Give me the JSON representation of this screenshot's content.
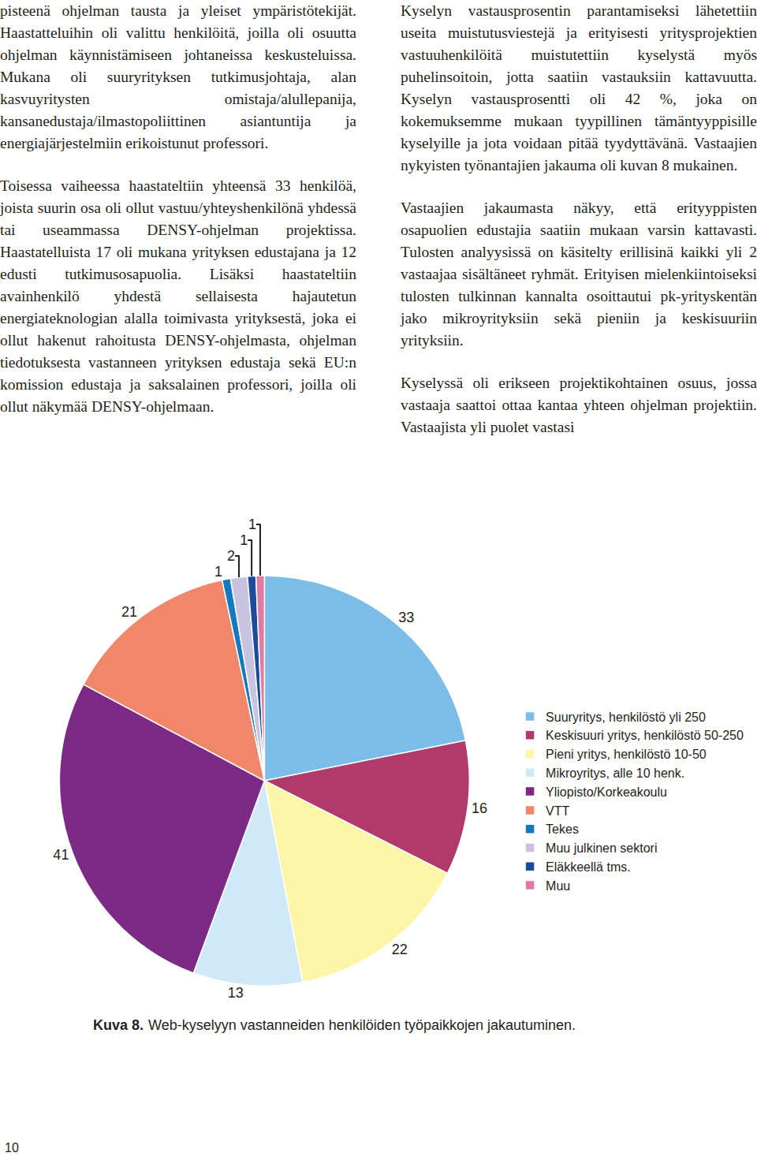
{
  "columns": [
    [
      "pisteenä ohjelman tausta ja yleiset ympäristötekijät. Haastatteluihin oli valittu henkilöitä, joilla oli osuutta ohjelman käynnistämiseen johtaneissa keskusteluissa. Mukana oli suuryrityksen tutkimusjohtaja, alan kasvuyritysten omistaja/alullepanija, kansanedustaja/ilmastopoliittinen asiantuntija ja energiajärjestelmiin erikoistunut professori.",
      "Toisessa vaiheessa haastateltiin yhteensä 33 henkilöä, joista suurin osa oli ollut vastuu/yhteyshenkilönä yhdessä tai useammassa DENSY-ohjelman projektissa. Haastatelluista 17 oli mukana yrityksen edustajana ja 12 edusti tutkimusosapuolia. Lisäksi haastateltiin avainhenkilö yhdestä sellaisesta hajautetun energiateknologian alalla toimivasta yrityksestä, joka ei ollut hakenut rahoitusta DENSY-ohjelmasta, ohjelman tiedotuksesta vastanneen yrityksen edustaja sekä EU:n komission edustaja ja saksalainen professori, joilla oli ollut näkymää DENSY-ohjelmaan."
    ],
    [
      "Kyselyn vastausprosentin parantamiseksi lähetettiin useita muistutusviestejä ja erityisesti yritysprojektien vastuuhenkilöitä muistutettiin kyselystä myös puhelinsoitoin, jotta saatiin vastauksiin kattavuutta. Kyselyn vastausprosentti oli 42 %, joka on kokemuksemme mukaan tyypillinen tämäntyyppisille kyselyille ja jota voidaan pitää tyydyttävänä. Vastaajien nykyisten työnantajien jakauma oli kuvan 8 mukainen.",
      "Vastaajien jakaumasta näkyy, että erityyppisten osapuolien edustajia saatiin mukaan varsin kattavasti. Tulosten analyysissä on käsitelty erillisinä kaikki yli 2 vastaajaa sisältäneet ryhmät. Erityisen mielenkiintoiseksi tulosten tulkinnan kannalta osoittautui pk-yrityskentän jako mikroyrityksiin sekä pieniin ja keskisuuriin yrityksiin.",
      "Kyselyssä oli erikseen projektikohtainen osuus, jossa vastaaja saattoi ottaa kantaa yhteen ohjelman projektiin. Vastaajista yli puolet vastasi"
    ]
  ],
  "chart_data": {
    "type": "pie",
    "categories": [
      "Suuryritys, henkilöstö yli 250",
      "Keskisuuri yritys, henkilöstö 50-250",
      "Pieni yritys, henkilöstö 10-50",
      "Mikroyritys, alle 10 henk.",
      "Yliopisto/Korkeakoulu",
      "VTT",
      "Tekes",
      "Muu julkinen sektori",
      "Eläkkeellä tms.",
      "Muu"
    ],
    "values": [
      33,
      16,
      22,
      13,
      41,
      21,
      1,
      2,
      1,
      1
    ],
    "colors": [
      "#7bbde6",
      "#b03a6a",
      "#fdf5a8",
      "#cfe9f8",
      "#7b2a85",
      "#f0876a",
      "#1479c0",
      "#c8c3e0",
      "#1b4c9c",
      "#e07ba8"
    ],
    "data_labels": true,
    "legend": "right"
  },
  "caption": {
    "label": "Kuva 8.",
    "text": "Web-kyselyyn vastanneiden henkilöiden työpaikkojen jakautuminen."
  },
  "page_number": "10"
}
